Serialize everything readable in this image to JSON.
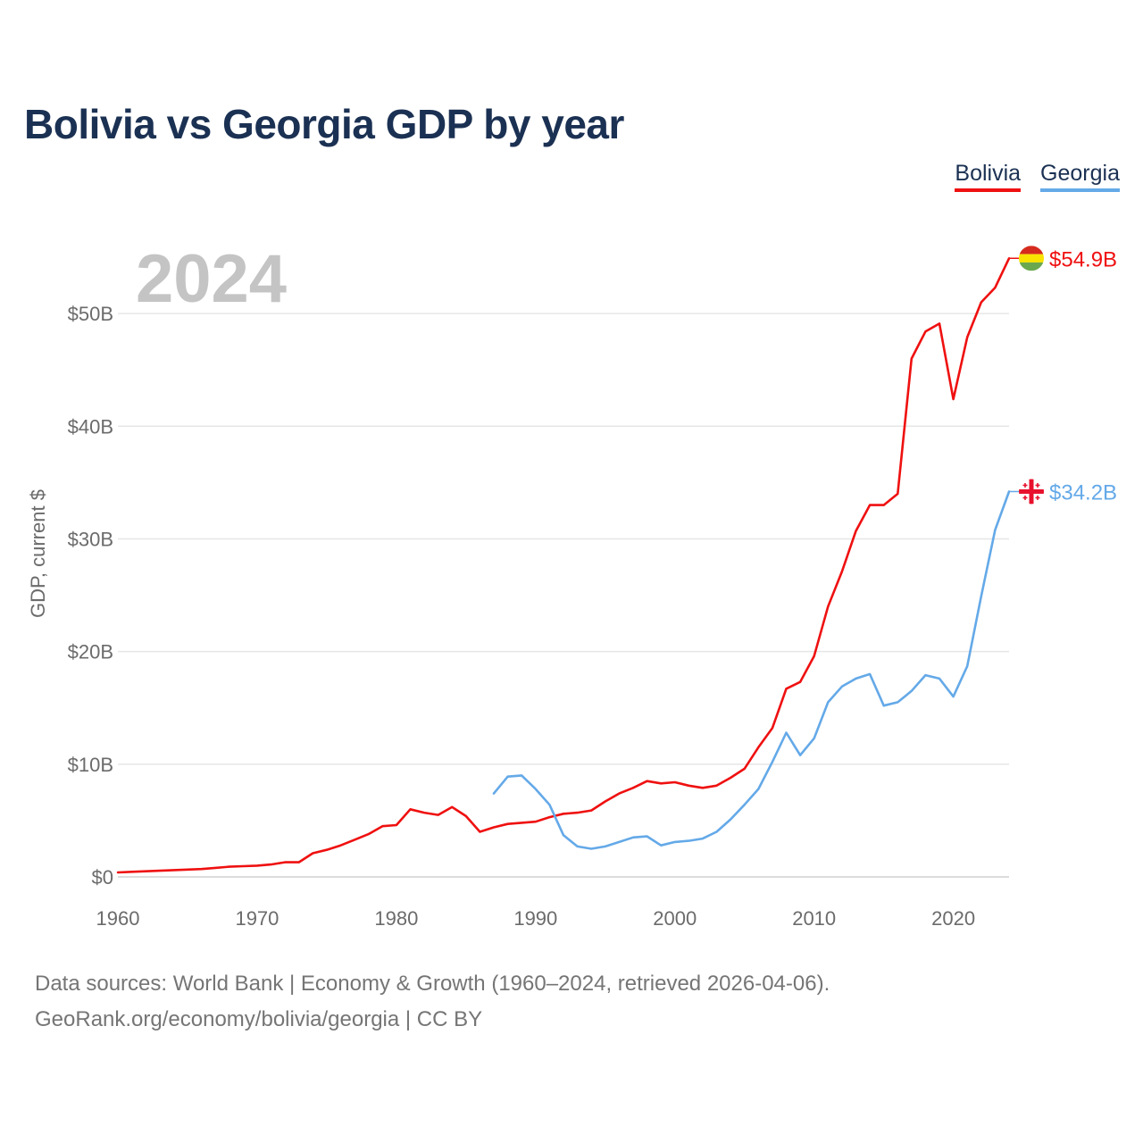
{
  "chart_data": {
    "type": "line",
    "title": "Bolivia vs Georgia GDP by year",
    "ylabel": "GDP, current $",
    "xlabel": "",
    "year_label": "2024",
    "xlim": [
      1960,
      2024
    ],
    "ylim": [
      0,
      55
    ],
    "x_ticks": [
      1960,
      1970,
      1980,
      1990,
      2000,
      2010,
      2020
    ],
    "y_ticks": [
      {
        "value": 0,
        "label": "$0"
      },
      {
        "value": 10,
        "label": "$10B"
      },
      {
        "value": 20,
        "label": "$20B"
      },
      {
        "value": 30,
        "label": "$30B"
      },
      {
        "value": 40,
        "label": "$40B"
      },
      {
        "value": 50,
        "label": "$50B"
      }
    ],
    "units": "billions USD",
    "series": [
      {
        "name": "Bolivia",
        "color": "#ef1010",
        "end_label": "$54.9B",
        "flag": "bolivia-flag",
        "x": [
          1960,
          1961,
          1962,
          1963,
          1964,
          1965,
          1966,
          1967,
          1968,
          1969,
          1970,
          1971,
          1972,
          1973,
          1974,
          1975,
          1976,
          1977,
          1978,
          1979,
          1980,
          1981,
          1982,
          1983,
          1984,
          1985,
          1986,
          1987,
          1988,
          1989,
          1990,
          1991,
          1992,
          1993,
          1994,
          1995,
          1996,
          1997,
          1998,
          1999,
          2000,
          2001,
          2002,
          2003,
          2004,
          2005,
          2006,
          2007,
          2008,
          2009,
          2010,
          2011,
          2012,
          2013,
          2014,
          2015,
          2016,
          2017,
          2018,
          2019,
          2020,
          2021,
          2022,
          2023,
          2024
        ],
        "values": [
          0.4,
          0.45,
          0.5,
          0.55,
          0.6,
          0.65,
          0.7,
          0.8,
          0.9,
          0.95,
          1.0,
          1.1,
          1.3,
          1.3,
          2.1,
          2.4,
          2.8,
          3.3,
          3.8,
          4.5,
          4.6,
          6.0,
          5.7,
          5.5,
          6.2,
          5.4,
          4.0,
          4.4,
          4.7,
          4.8,
          4.9,
          5.3,
          5.6,
          5.7,
          5.9,
          6.7,
          7.4,
          7.9,
          8.5,
          8.3,
          8.4,
          8.1,
          7.9,
          8.1,
          8.8,
          9.6,
          11.5,
          13.2,
          16.7,
          17.3,
          19.6,
          24.0,
          27.1,
          30.7,
          33.0,
          33.0,
          34.0,
          46.0,
          48.4,
          49.1,
          42.4,
          47.9,
          51.0,
          52.3,
          54.9
        ]
      },
      {
        "name": "Georgia",
        "color": "#64a9e8",
        "end_label": "$34.2B",
        "flag": "georgia-flag",
        "x": [
          1987,
          1988,
          1989,
          1990,
          1991,
          1992,
          1993,
          1994,
          1995,
          1996,
          1997,
          1998,
          1999,
          2000,
          2001,
          2002,
          2003,
          2004,
          2005,
          2006,
          2007,
          2008,
          2009,
          2010,
          2011,
          2012,
          2013,
          2014,
          2015,
          2016,
          2017,
          2018,
          2019,
          2020,
          2021,
          2022,
          2023,
          2024
        ],
        "values": [
          7.4,
          8.9,
          9.0,
          7.8,
          6.4,
          3.7,
          2.7,
          2.5,
          2.7,
          3.1,
          3.5,
          3.6,
          2.8,
          3.1,
          3.2,
          3.4,
          4.0,
          5.1,
          6.4,
          7.8,
          10.2,
          12.8,
          10.8,
          12.3,
          15.5,
          16.9,
          17.6,
          18.0,
          15.2,
          15.5,
          16.5,
          17.9,
          17.6,
          16.0,
          18.7,
          24.9,
          30.8,
          34.2
        ]
      }
    ]
  },
  "footer": {
    "source_line": "Data sources: World Bank | Economy & Growth (1960–2024, retrieved 2026-04-06).",
    "link_line": "GeoRank.org/economy/bolivia/georgia | CC BY"
  }
}
